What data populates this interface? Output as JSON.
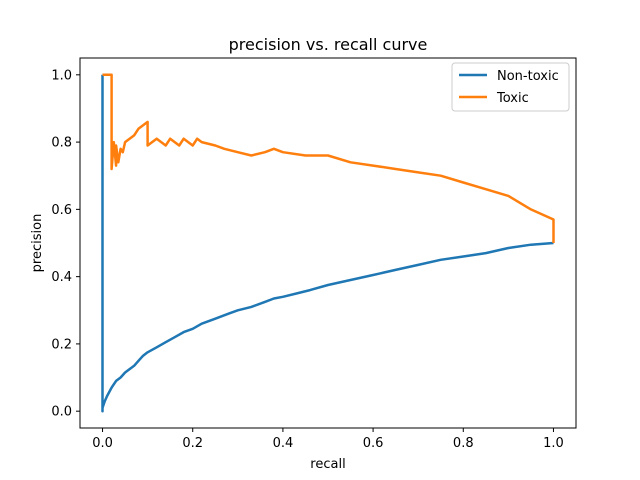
{
  "chart_data": {
    "type": "line",
    "title": "precision vs. recall curve",
    "xlabel": "recall",
    "ylabel": "precision",
    "xlim": [
      -0.05,
      1.05
    ],
    "ylim": [
      -0.05,
      1.05
    ],
    "xticks": [
      0.0,
      0.2,
      0.4,
      0.6,
      0.8,
      1.0
    ],
    "xtick_labels": [
      "0.0",
      "0.2",
      "0.4",
      "0.6",
      "0.8",
      "1.0"
    ],
    "yticks": [
      0.0,
      0.2,
      0.4,
      0.6,
      0.8,
      1.0
    ],
    "ytick_labels": [
      "0.0",
      "0.2",
      "0.4",
      "0.6",
      "0.8",
      "1.0"
    ],
    "grid": false,
    "legend_position": "top-right",
    "series": [
      {
        "name": "Non-toxic",
        "color": "#1f77b4",
        "x": [
          0.0,
          0.0,
          0.0,
          0.005,
          0.01,
          0.02,
          0.03,
          0.04,
          0.05,
          0.06,
          0.07,
          0.08,
          0.09,
          0.1,
          0.12,
          0.14,
          0.16,
          0.18,
          0.2,
          0.22,
          0.25,
          0.28,
          0.3,
          0.33,
          0.36,
          0.38,
          0.4,
          0.43,
          0.46,
          0.5,
          0.55,
          0.6,
          0.65,
          0.7,
          0.75,
          0.8,
          0.85,
          0.9,
          0.95,
          1.0
        ],
        "y": [
          1.0,
          0.0,
          0.01,
          0.03,
          0.045,
          0.07,
          0.09,
          0.1,
          0.115,
          0.125,
          0.135,
          0.15,
          0.165,
          0.175,
          0.19,
          0.205,
          0.22,
          0.235,
          0.245,
          0.26,
          0.275,
          0.29,
          0.3,
          0.31,
          0.325,
          0.335,
          0.34,
          0.35,
          0.36,
          0.375,
          0.39,
          0.405,
          0.42,
          0.435,
          0.45,
          0.46,
          0.47,
          0.485,
          0.495,
          0.5
        ]
      },
      {
        "name": "Toxic",
        "color": "#ff7f0e",
        "x": [
          0.0,
          0.01,
          0.02,
          0.02,
          0.025,
          0.03,
          0.03,
          0.035,
          0.04,
          0.045,
          0.05,
          0.06,
          0.07,
          0.08,
          0.09,
          0.1,
          0.1,
          0.11,
          0.12,
          0.14,
          0.15,
          0.16,
          0.17,
          0.18,
          0.2,
          0.21,
          0.22,
          0.25,
          0.27,
          0.3,
          0.33,
          0.36,
          0.38,
          0.4,
          0.45,
          0.5,
          0.55,
          0.6,
          0.65,
          0.7,
          0.75,
          0.8,
          0.85,
          0.9,
          0.95,
          1.0,
          1.0
        ],
        "y": [
          1.0,
          1.0,
          1.0,
          0.72,
          0.8,
          0.73,
          0.79,
          0.74,
          0.78,
          0.77,
          0.8,
          0.81,
          0.82,
          0.84,
          0.85,
          0.86,
          0.79,
          0.8,
          0.81,
          0.79,
          0.81,
          0.8,
          0.79,
          0.81,
          0.79,
          0.81,
          0.8,
          0.79,
          0.78,
          0.77,
          0.76,
          0.77,
          0.78,
          0.77,
          0.76,
          0.76,
          0.74,
          0.73,
          0.72,
          0.71,
          0.7,
          0.68,
          0.66,
          0.64,
          0.6,
          0.57,
          0.5
        ]
      }
    ]
  }
}
